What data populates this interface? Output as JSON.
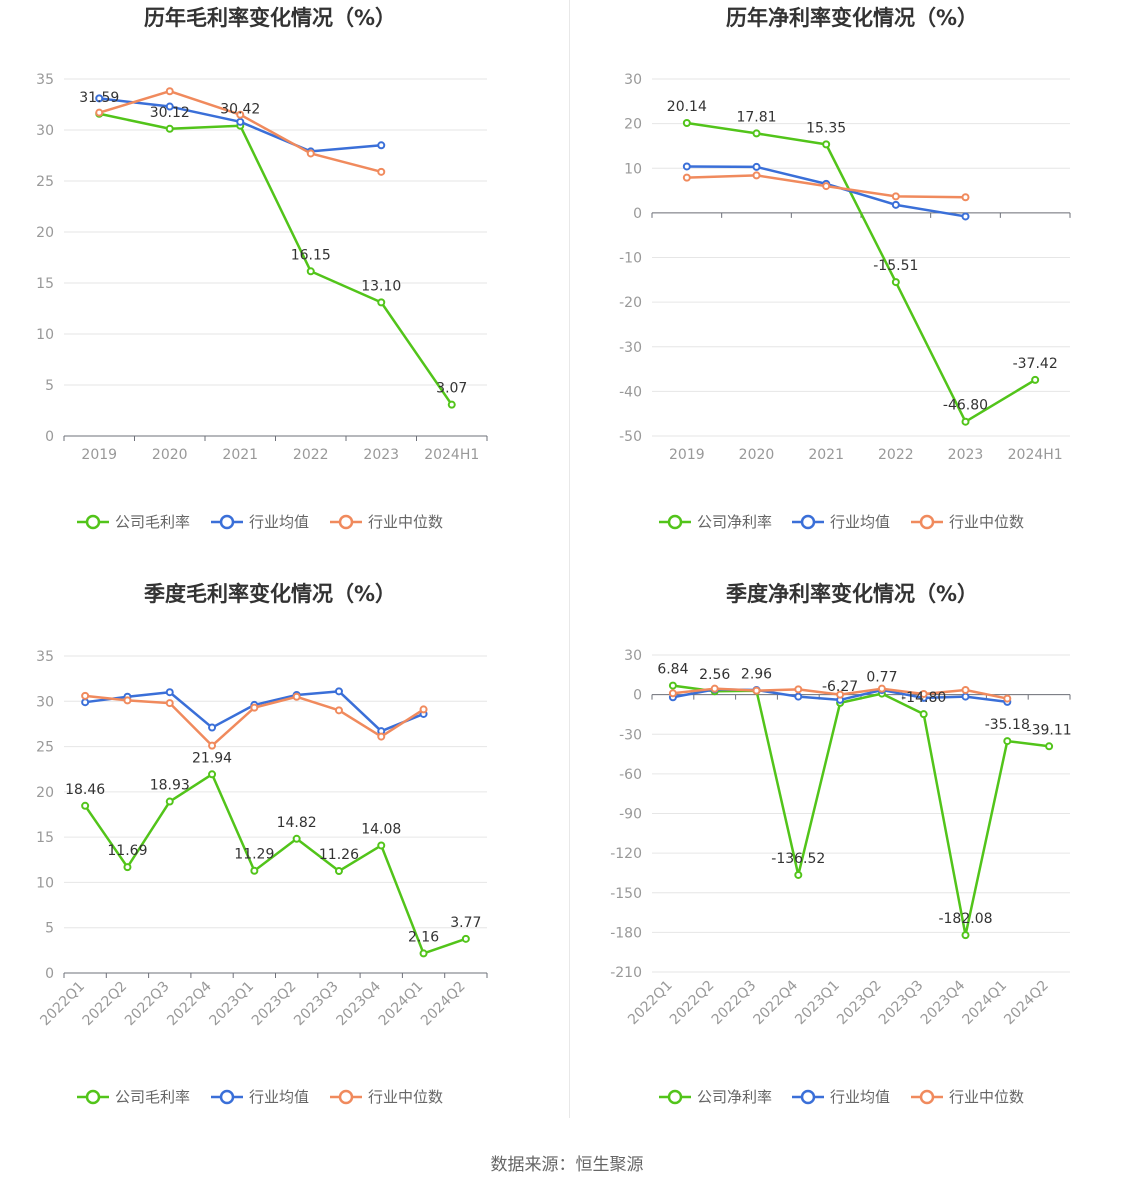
{
  "source": "数据来源：恒生聚源",
  "colors": {
    "company": "#52c41a",
    "avg": "#3a6fd8",
    "median": "#f08a5d"
  },
  "chart_data": [
    {
      "type": "line",
      "title": "历年毛利率变化情况（%）",
      "categories": [
        "2019",
        "2020",
        "2021",
        "2022",
        "2023",
        "2024H1"
      ],
      "ylim": [
        0,
        35
      ],
      "yticks": [
        0,
        5,
        10,
        15,
        20,
        25,
        30,
        35
      ],
      "series": [
        {
          "name": "公司毛利率",
          "role": "company",
          "values": [
            31.59,
            30.12,
            30.42,
            16.15,
            13.1,
            3.07
          ],
          "labels": [
            "31.59",
            "30.12",
            "30.42",
            "16.15",
            "13.10",
            "3.07"
          ]
        },
        {
          "name": "行业均值",
          "role": "avg",
          "values": [
            33.1,
            32.3,
            30.8,
            27.9,
            28.5,
            null
          ]
        },
        {
          "name": "行业中位数",
          "role": "median",
          "values": [
            31.7,
            33.8,
            31.5,
            27.7,
            25.9,
            null
          ]
        }
      ],
      "rotate_x": false
    },
    {
      "type": "line",
      "title": "历年净利率变化情况（%）",
      "categories": [
        "2019",
        "2020",
        "2021",
        "2022",
        "2023",
        "2024H1"
      ],
      "ylim": [
        -50,
        30
      ],
      "yticks": [
        -50,
        -40,
        -30,
        -20,
        -10,
        0,
        10,
        20,
        30
      ],
      "series": [
        {
          "name": "公司净利率",
          "role": "company",
          "values": [
            20.14,
            17.81,
            15.35,
            -15.51,
            -46.8,
            -37.42
          ],
          "labels": [
            "20.14",
            "17.81",
            "15.35",
            "-15.51",
            "-46.80",
            "-37.42"
          ]
        },
        {
          "name": "行业均值",
          "role": "avg",
          "values": [
            10.4,
            10.3,
            6.5,
            1.8,
            -0.8,
            null
          ]
        },
        {
          "name": "行业中位数",
          "role": "median",
          "values": [
            7.9,
            8.4,
            6.0,
            3.7,
            3.5,
            null
          ]
        }
      ],
      "rotate_x": false
    },
    {
      "type": "line",
      "title": "季度毛利率变化情况（%）",
      "categories": [
        "2022Q1",
        "2022Q2",
        "2022Q3",
        "2022Q4",
        "2023Q1",
        "2023Q2",
        "2023Q3",
        "2023Q4",
        "2024Q1",
        "2024Q2"
      ],
      "ylim": [
        0,
        35
      ],
      "yticks": [
        0,
        5,
        10,
        15,
        20,
        25,
        30,
        35
      ],
      "series": [
        {
          "name": "公司毛利率",
          "role": "company",
          "values": [
            18.46,
            11.69,
            18.93,
            21.94,
            11.29,
            14.82,
            11.26,
            14.08,
            2.16,
            3.77
          ],
          "labels": [
            "18.46",
            "11.69",
            "18.93",
            "21.94",
            "11.29",
            "14.82",
            "11.26",
            "14.08",
            "2.16",
            "3.77"
          ]
        },
        {
          "name": "行业均值",
          "role": "avg",
          "values": [
            29.9,
            30.5,
            31.0,
            27.1,
            29.6,
            30.7,
            31.1,
            26.7,
            28.6,
            null
          ]
        },
        {
          "name": "行业中位数",
          "role": "median",
          "values": [
            30.6,
            30.1,
            29.8,
            25.1,
            29.3,
            30.5,
            29.0,
            26.1,
            29.1,
            null
          ]
        }
      ],
      "rotate_x": true
    },
    {
      "type": "line",
      "title": "季度净利率变化情况（%）",
      "categories": [
        "2022Q1",
        "2022Q2",
        "2022Q3",
        "2022Q4",
        "2023Q1",
        "2023Q2",
        "2023Q3",
        "2023Q4",
        "2024Q1",
        "2024Q2"
      ],
      "ylim": [
        -210,
        30
      ],
      "yticks": [
        -210,
        -180,
        -150,
        -120,
        -90,
        -60,
        -30,
        0,
        30
      ],
      "series": [
        {
          "name": "公司净利率",
          "role": "company",
          "values": [
            6.84,
            2.56,
            2.96,
            -136.52,
            -6.27,
            0.77,
            -14.8,
            -182.08,
            -35.18,
            -39.11
          ],
          "labels": [
            "6.84",
            "2.56",
            "2.96",
            "-136.52",
            "-6.27",
            "0.77",
            "-14.80",
            "-182.08",
            "-35.18",
            "-39.11"
          ]
        },
        {
          "name": "行业均值",
          "role": "avg",
          "values": [
            -2.0,
            4.0,
            3.5,
            -1.5,
            -4.0,
            3.5,
            -2.5,
            -1.5,
            -5.5,
            null
          ]
        },
        {
          "name": "行业中位数",
          "role": "median",
          "values": [
            1.0,
            4.5,
            3.0,
            4.0,
            0.0,
            4.5,
            0.5,
            3.5,
            -3.0,
            null
          ]
        }
      ],
      "rotate_x": true
    }
  ]
}
